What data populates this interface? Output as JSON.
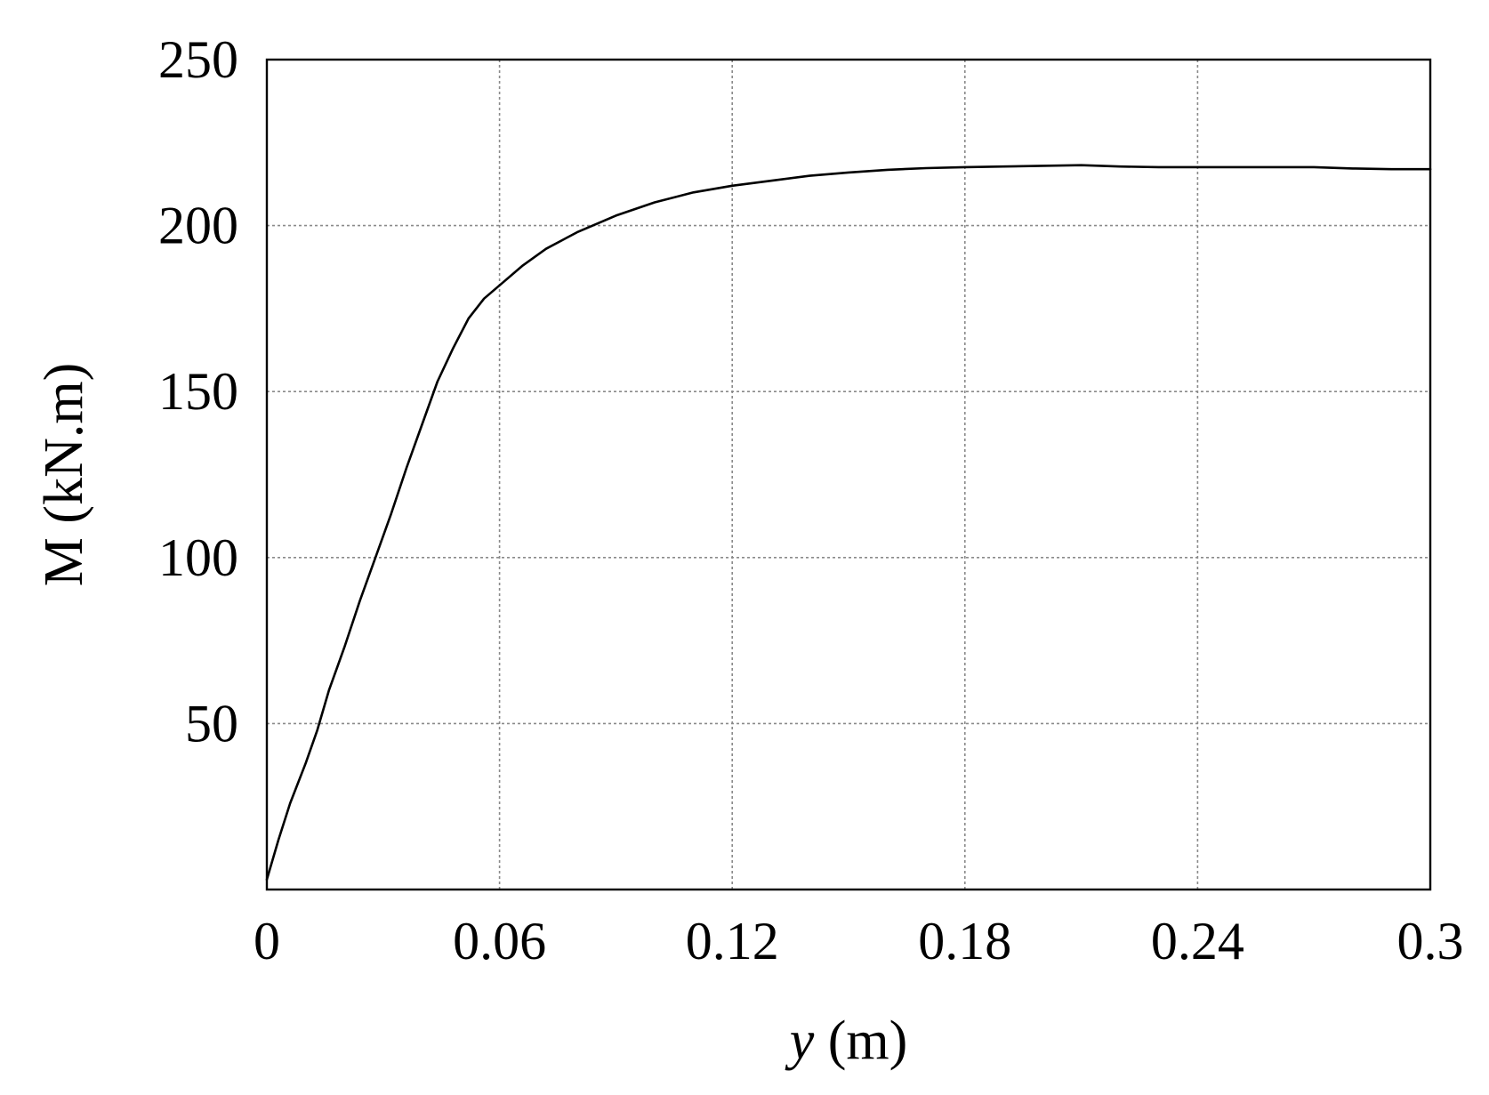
{
  "chart_data": {
    "type": "line",
    "xlabel_var": "y",
    "xlabel_unit": "m",
    "ylabel": "M (kN.m)",
    "xlim": [
      0,
      0.3
    ],
    "ylim": [
      0,
      250
    ],
    "grid": true,
    "x_ticks": [
      0,
      0.06,
      0.12,
      0.18,
      0.24,
      0.3
    ],
    "x_tick_labels": [
      "0",
      "0.06",
      "0.12",
      "0.18",
      "0.24",
      "0.3"
    ],
    "y_ticks": [
      50,
      100,
      150,
      200,
      250
    ],
    "y_tick_labels": [
      "50",
      "100",
      "150",
      "200",
      "250"
    ],
    "series": [
      {
        "x": [
          0,
          0.003,
          0.006,
          0.01,
          0.013,
          0.016,
          0.02,
          0.024,
          0.028,
          0.032,
          0.036,
          0.04,
          0.044,
          0.048,
          0.052,
          0.056,
          0.06,
          0.066,
          0.072,
          0.08,
          0.09,
          0.1,
          0.11,
          0.12,
          0.13,
          0.14,
          0.15,
          0.16,
          0.17,
          0.18,
          0.19,
          0.2,
          0.21,
          0.22,
          0.23,
          0.24,
          0.25,
          0.26,
          0.27,
          0.28,
          0.29,
          0.3
        ],
        "values": [
          3,
          15,
          26,
          38,
          48,
          60,
          73,
          87,
          100,
          113,
          127,
          140,
          153,
          163,
          172,
          178,
          182,
          188,
          193,
          198,
          203,
          207,
          210,
          212,
          213.5,
          215,
          216,
          216.8,
          217.3,
          217.6,
          217.8,
          218,
          218.2,
          217.8,
          217.6,
          217.6,
          217.6,
          217.6,
          217.6,
          217.2,
          217,
          217
        ]
      }
    ]
  }
}
